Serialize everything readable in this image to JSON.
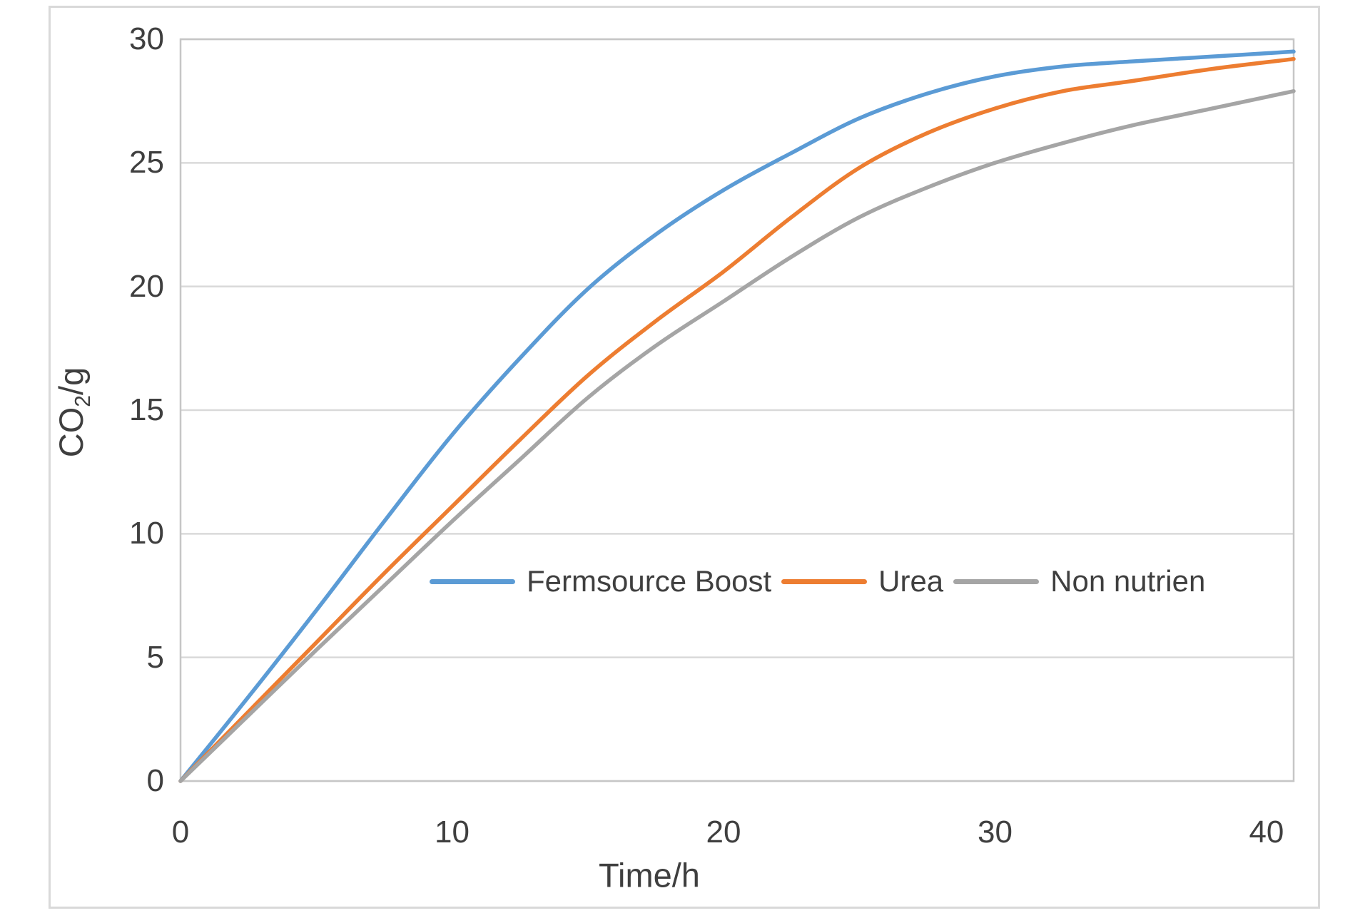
{
  "chart": {
    "background": "#FFFFFF",
    "frame_border_color": "#D9D9D9",
    "text_color": "#3F3F3F",
    "gridline_color": "#D9D9D9",
    "axis_line_color": "#C6C6C6",
    "x_axis": {
      "title": "Time/h",
      "ticks": [
        0,
        10,
        20,
        30,
        40
      ]
    },
    "y_axis": {
      "title_pre": "CO",
      "title_sub": "2",
      "title_post": "/g",
      "ticks": [
        0,
        5,
        10,
        15,
        20,
        25,
        30
      ]
    },
    "legend": [
      {
        "label": "Fermsource Boost",
        "color": "#5B9BD5"
      },
      {
        "label": "Urea",
        "color": "#ED7D31"
      },
      {
        "label": "Non nutrien",
        "color": "#A5A5A5"
      }
    ]
  },
  "chart_data": {
    "type": "line",
    "title": "",
    "xlabel": "Time/h",
    "ylabel": "CO2/g",
    "xlim": [
      0,
      41
    ],
    "ylim": [
      0,
      30
    ],
    "grid": "horizontal",
    "legend_position": "inside-center",
    "x": [
      0,
      2.5,
      5,
      7.5,
      10,
      12.5,
      15,
      17.5,
      20,
      22.5,
      25,
      27.5,
      30,
      32.5,
      35,
      38,
      41
    ],
    "series": [
      {
        "name": "Fermsource Boost",
        "color": "#5B9BD5",
        "values": [
          0,
          3.4,
          6.9,
          10.5,
          14.0,
          17.1,
          19.9,
          22.1,
          23.9,
          25.4,
          26.8,
          27.8,
          28.5,
          28.9,
          29.1,
          29.3,
          29.5
        ]
      },
      {
        "name": "Urea",
        "color": "#ED7D31",
        "values": [
          0,
          2.8,
          5.6,
          8.4,
          11.1,
          13.8,
          16.4,
          18.6,
          20.6,
          22.8,
          24.8,
          26.2,
          27.2,
          27.9,
          28.3,
          28.8,
          29.2
        ]
      },
      {
        "name": "Non nutrien",
        "color": "#A5A5A5",
        "values": [
          0,
          2.65,
          5.3,
          7.9,
          10.5,
          13.0,
          15.5,
          17.6,
          19.4,
          21.2,
          22.8,
          24.0,
          25.0,
          25.8,
          26.5,
          27.2,
          27.9
        ]
      }
    ]
  }
}
